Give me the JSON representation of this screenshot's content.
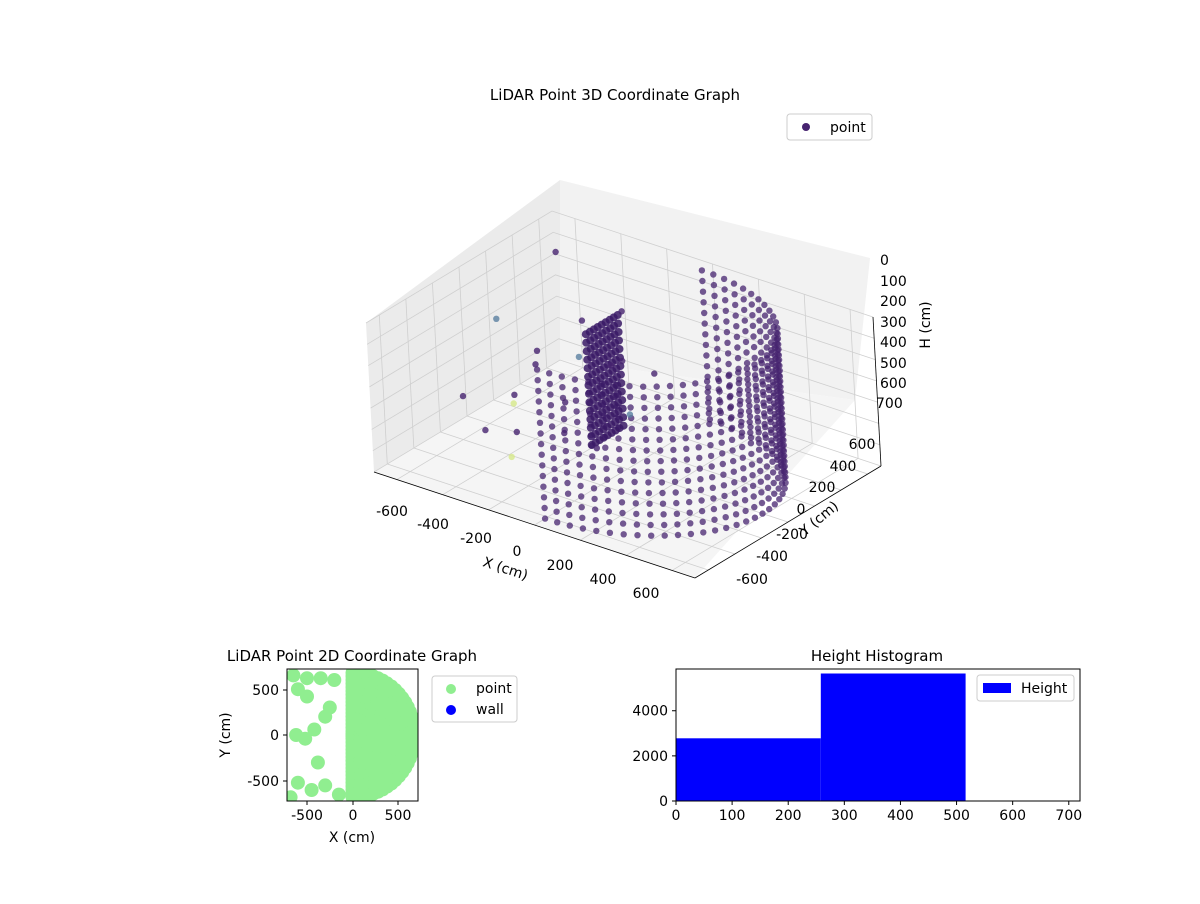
{
  "colors": {
    "point_purple": "#46236f",
    "point_light_green": "#90ee90",
    "wall_blue": "#0000ff",
    "hist_blue": "#0000ff",
    "outlier_teal": "#5a7fa0",
    "outlier_yellow": "#d6e88a"
  },
  "chart_data": [
    {
      "type": "scatter3d",
      "title": "LiDAR Point 3D Coordinate Graph",
      "xlabel": "X (cm)",
      "ylabel": "Y (cm)",
      "zlabel": "H (cm)",
      "xlim": [
        -700,
        700
      ],
      "ylim": [
        -700,
        700
      ],
      "zlim": [
        0,
        700
      ],
      "z_inverted": true,
      "x_ticks": [
        "-600",
        "-400",
        "-200",
        "0",
        "200",
        "400",
        "600"
      ],
      "y_ticks": [
        "-600",
        "-400",
        "-200",
        "0",
        "200",
        "400",
        "600"
      ],
      "z_ticks": [
        "0",
        "100",
        "200",
        "300",
        "400",
        "500",
        "600",
        "700"
      ],
      "legend": {
        "position": "top-right",
        "entries": [
          "point"
        ]
      },
      "series": [
        {
          "name": "point",
          "description_values": {
            "arc": {
              "radius": 620,
              "start_deg": -90,
              "end_deg": 90,
              "h_min": 0,
              "h_max": 700
            },
            "scatter_outliers": [
              [
                -620,
                120,
                260
              ],
              [
                -560,
                480,
                60
              ],
              [
                -500,
                -200,
                620
              ],
              [
                -640,
                -120,
                540
              ],
              [
                -420,
                60,
                380
              ],
              [
                -380,
                -180,
                460
              ],
              [
                -300,
                -300,
                520
              ],
              [
                -250,
                100,
                300
              ],
              [
                -200,
                -100,
                420
              ],
              [
                -150,
                250,
                340
              ],
              [
                -120,
                -250,
                480
              ],
              [
                -80,
                50,
                260
              ],
              [
                -40,
                -150,
                560
              ],
              [
                20,
                200,
                320
              ],
              [
                60,
                -60,
                400
              ],
              [
                -350,
                300,
                240
              ],
              [
                -280,
                -380,
                600
              ],
              [
                -220,
                380,
                180
              ],
              [
                -460,
                -40,
                500
              ],
              [
                -520,
                240,
                420
              ]
            ]
          }
        }
      ]
    },
    {
      "type": "scatter",
      "title": "LiDAR Point 2D Coordinate Graph",
      "xlabel": "X (cm)",
      "ylabel": "Y (cm)",
      "xlim": [
        -720,
        720
      ],
      "ylim": [
        -720,
        720
      ],
      "x_ticks": [
        "-500",
        "0",
        "500"
      ],
      "y_ticks": [
        "500",
        "0",
        "-500"
      ],
      "legend": {
        "position": "right-outside",
        "entries": [
          "point",
          "wall"
        ]
      },
      "series": [
        {
          "name": "point"
        },
        {
          "name": "wall"
        }
      ]
    },
    {
      "type": "bar",
      "title": "Height Histogram",
      "xlim": [
        0,
        720
      ],
      "ylim": [
        0,
        5850
      ],
      "x_ticks": [
        "0",
        "100",
        "200",
        "300",
        "400",
        "500",
        "600",
        "700"
      ],
      "y_ticks": [
        "0",
        "2000",
        "4000"
      ],
      "legend": {
        "position": "top-right",
        "entries": [
          "Height"
        ]
      },
      "bins": [
        {
          "start": 0,
          "end": 258,
          "count": 2780
        },
        {
          "start": 258,
          "end": 516,
          "count": 5650
        },
        {
          "start": 516,
          "end": 720,
          "count": 0
        }
      ],
      "series": [
        {
          "name": "Height"
        }
      ]
    }
  ]
}
